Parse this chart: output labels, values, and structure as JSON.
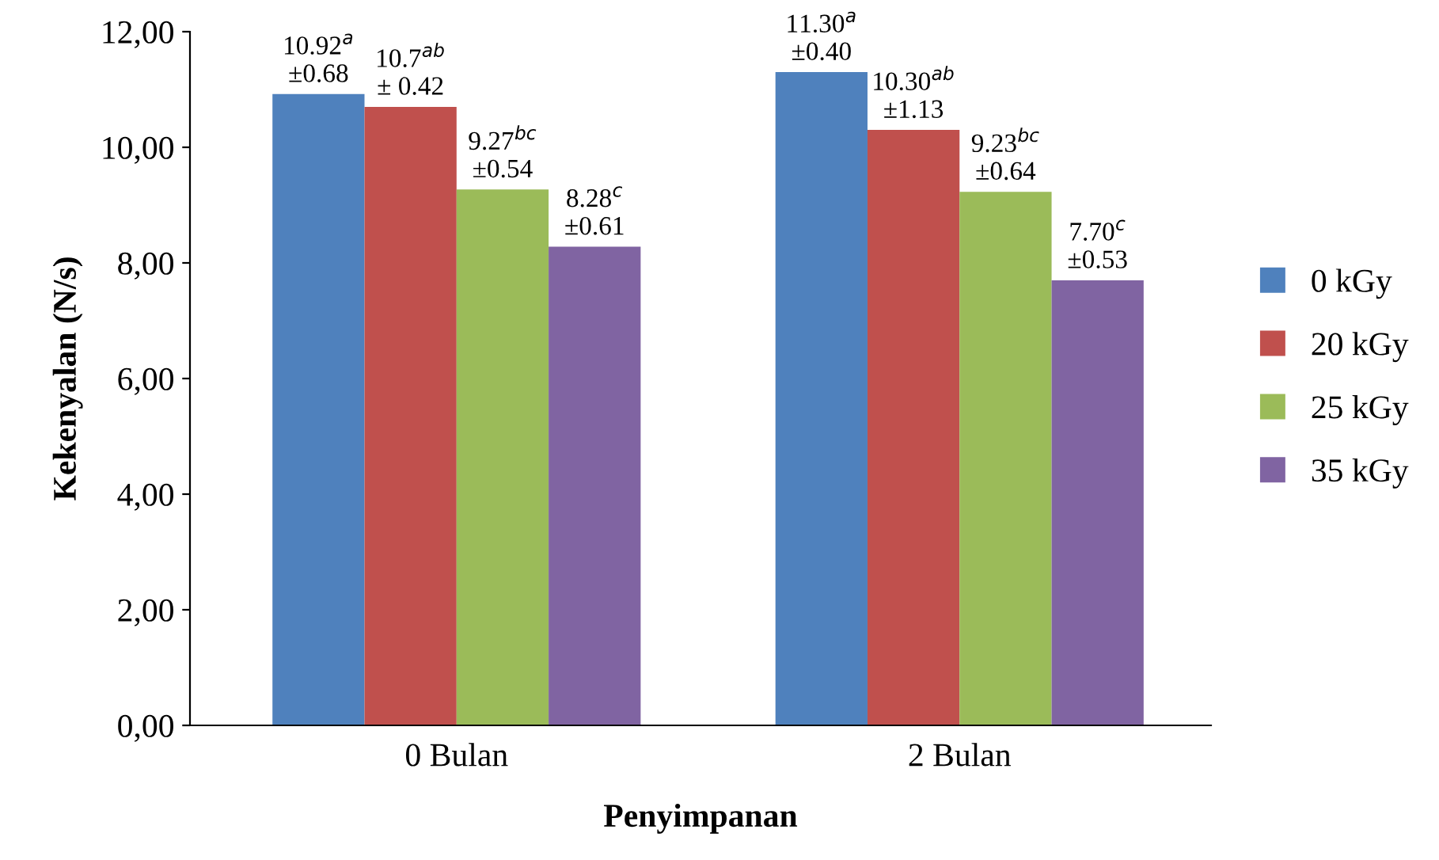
{
  "chart_data": {
    "type": "bar",
    "xlabel": "Penyimpanan",
    "ylabel": "Kekenyalan (N/s)",
    "categories": [
      "0 Bulan",
      "2 Bulan"
    ],
    "series": [
      {
        "name": "0 kGy",
        "color": "#4f81bd",
        "values": [
          10.92,
          11.3
        ],
        "value_labels": [
          "10.92$^{a}$\n±0.68",
          "11.30$^{a}$\n±0.40"
        ]
      },
      {
        "name": "20 kGy",
        "color": "#c0504d",
        "values": [
          10.7,
          10.3
        ],
        "value_labels": [
          "10.7$^{ab}$\n± 0.42",
          "10.30$^{ab}$\n±1.13"
        ]
      },
      {
        "name": "25 kGy",
        "color": "#9bbb59",
        "values": [
          9.27,
          9.23
        ],
        "value_labels": [
          "9.27$^{bc}$\n±0.54",
          "9.23$^{bc}$\n±0.64"
        ]
      },
      {
        "name": "35 kGy",
        "color": "#8064a2",
        "values": [
          8.28,
          7.7
        ],
        "value_labels": [
          "8.28$^{c}$\n±0.61",
          "7.70$^{c}$\n±0.53"
        ]
      }
    ],
    "ylim": [
      0,
      12
    ],
    "yticks": [
      {
        "value": 0,
        "label": "0,00"
      },
      {
        "value": 2,
        "label": "2,00"
      },
      {
        "value": 4,
        "label": "4,00"
      },
      {
        "value": 6,
        "label": "6,00"
      },
      {
        "value": 8,
        "label": "8,00"
      },
      {
        "value": 10,
        "label": "10,00"
      },
      {
        "value": 12,
        "label": "12,00"
      }
    ],
    "grid": false,
    "legend": "right"
  }
}
